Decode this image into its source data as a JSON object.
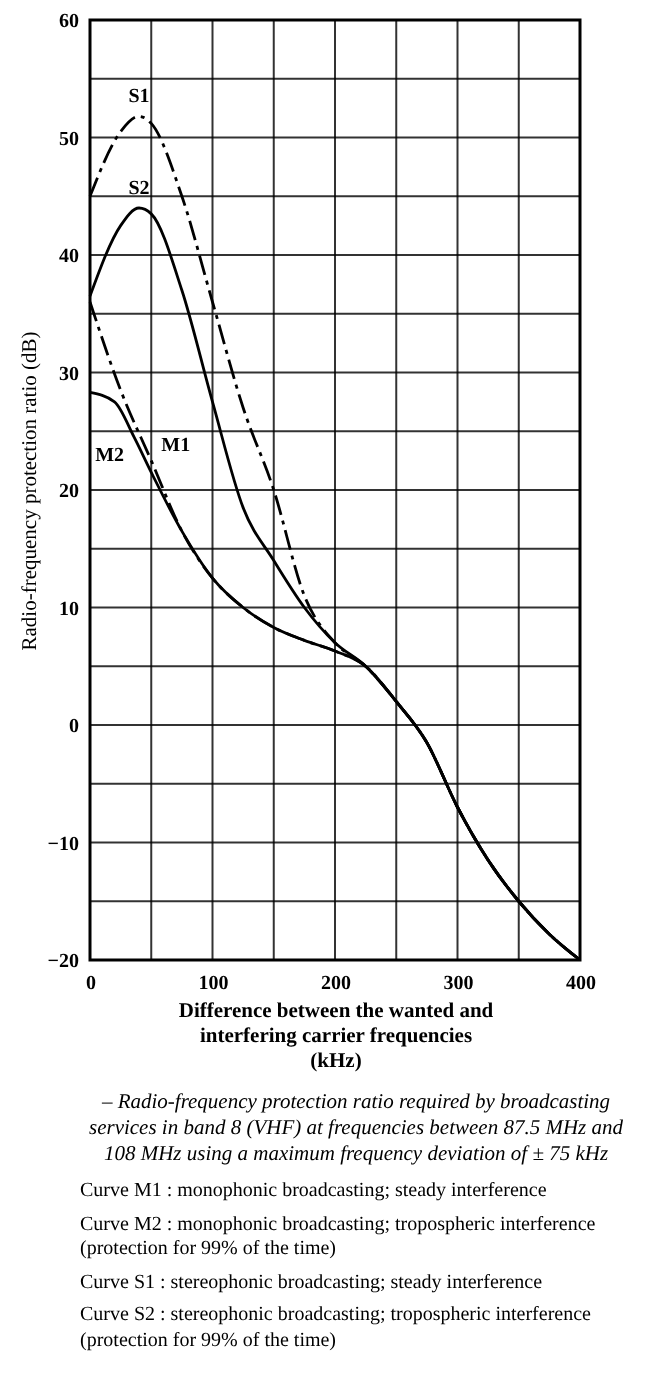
{
  "chart_data": {
    "type": "line",
    "title": "– Radio-frequency protection ratio required by broadcasting services in band 8 (VHF) at frequencies between 87.5 MHz and 108 MHz using a maximum frequency deviation of ± 75 kHz",
    "xlabel": "Difference between the wanted and interfering carrier frequencies (kHz)",
    "ylabel": "Radio-frequency protection ratio (dB)",
    "series": [
      {
        "color": "#000000",
        "line_style": "dashed",
        "x": [
          0,
          25,
          40,
          50,
          75,
          100,
          125,
          150,
          175,
          200,
          225,
          250,
          275,
          300,
          325,
          350,
          375,
          400
        ],
        "values": [
          45,
          50.5,
          51.8,
          51.2,
          45,
          36,
          27,
          20,
          11,
          7,
          5,
          2,
          -1.5,
          -7,
          -11.5,
          -15,
          -17.8,
          -20
        ]
      },
      {
        "color": "#000000",
        "line_style": "solid",
        "x": [
          0,
          25,
          40,
          50,
          75,
          100,
          125,
          150,
          175,
          200,
          225,
          250,
          275,
          300,
          325,
          350,
          375,
          400
        ],
        "values": [
          36.5,
          42.5,
          44,
          43.5,
          37,
          27.5,
          18.5,
          14,
          10,
          7,
          5,
          2,
          -1.5,
          -7,
          -11.5,
          -15,
          -17.8,
          -20
        ]
      },
      {
        "color": "#000000",
        "line_style": "dashed",
        "x": [
          0,
          25,
          50,
          75,
          100,
          125,
          150,
          175,
          200,
          225,
          250,
          275,
          300,
          325,
          350,
          375,
          400
        ],
        "values": [
          36,
          28.5,
          22.5,
          16.5,
          12.5,
          10,
          8.3,
          7.2,
          6.3,
          5,
          2,
          -1.5,
          -7,
          -11.5,
          -15,
          -17.8,
          -20
        ]
      },
      {
        "color": "#000000",
        "line_style": "solid",
        "x": [
          0,
          20,
          36,
          50,
          75,
          100,
          125,
          150,
          175,
          200,
          225,
          250,
          275,
          300,
          325,
          350,
          375,
          400
        ],
        "values": [
          28.3,
          27.5,
          24.5,
          21.5,
          16.5,
          12.5,
          10,
          8.3,
          7.2,
          6.3,
          5,
          2,
          -1.5,
          -7,
          -11.5,
          -15,
          -17.8,
          -20
        ]
      }
    ],
    "xlim": [
      0,
      400
    ],
    "xticks": [
      0,
      {
        "value": 50,
        "label": null
      },
      100,
      {
        "value": 150,
        "label": null
      },
      200,
      {
        "value": 250,
        "label": null
      },
      300,
      {
        "value": 350,
        "label": null
      },
      400
    ],
    "ylim": [
      -20,
      60
    ],
    "yticks": [
      -20,
      {
        "value": -15,
        "label": null
      },
      -10,
      {
        "value": -5,
        "label": null
      },
      0,
      {
        "value": 5,
        "label": null
      },
      10,
      {
        "value": 15,
        "label": null
      },
      20,
      {
        "value": 25,
        "label": null
      },
      30,
      {
        "value": 35,
        "label": null
      },
      40,
      {
        "value": 45,
        "label": null
      },
      50,
      {
        "value": 55,
        "label": null
      },
      60
    ],
    "grid": true,
    "annotations": [
      {
        "text": "S1",
        "x": 40,
        "y": 51.8
      },
      {
        "text": "S2",
        "x": 40,
        "y": 44
      },
      {
        "text": "M1",
        "x": 50,
        "y": 22.5
      },
      {
        "text": "M2",
        "x": 36,
        "y": 24.5
      },
      "Curve M1 : monophonic broadcasting; steady interference",
      "Curve M2 : monophonic broadcasting; tropospheric interference (protection for 99% of the time)",
      "Curve S1 : stereophonic broadcasting; steady interference",
      "Curve S2 : stereophonic broadcasting; tropospheric interference (protection for 99% of the time)"
    ]
  }
}
